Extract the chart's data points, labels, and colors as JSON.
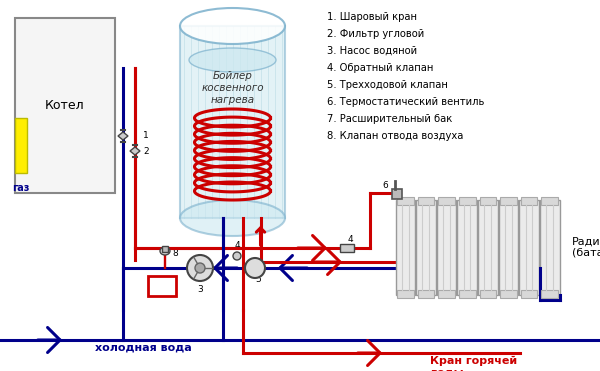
{
  "background_color": "#ffffff",
  "legend_items": [
    "1. Шаровый кран",
    "2. Фильтр угловой",
    "3. Насос водяной",
    "4. Обратный клапан",
    "5. Трехходовой клапан",
    "6. Термостатический вентиль",
    "7. Расширительный бак",
    "8. Клапан отвода воздуха"
  ],
  "boiler_label": "Бойлер\nкосвенного\nнагрева",
  "kotel_label": "Котел",
  "gaz_label": "газ",
  "radiator_label": "Радиатор\n(батарея)",
  "cold_water_label": "холодная вода",
  "hot_water_label": "Кран горячей\nводы",
  "red_color": "#cc0000",
  "blue_color": "#00008b",
  "yellow_color": "#ffee00",
  "boiler_fill": "#cce8f0",
  "boiler_stroke": "#7ab0cc",
  "kotel_fill": "#f5f5f5",
  "kotel_stroke": "#888888",
  "rad_fill": "#e8e8e8",
  "rad_stroke": "#888888"
}
